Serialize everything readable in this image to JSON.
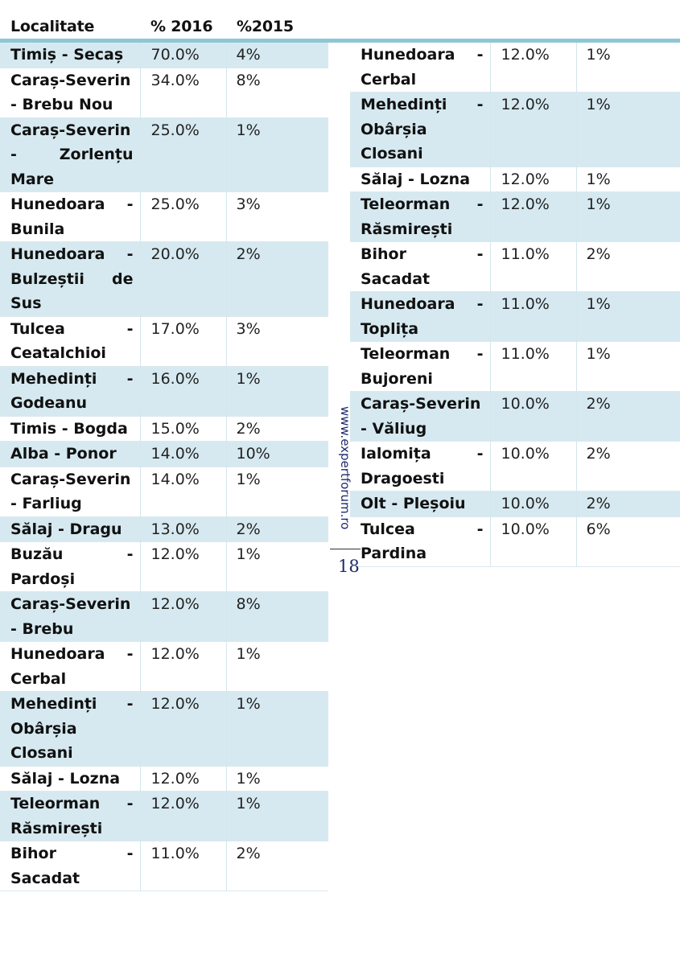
{
  "header": {
    "col_localitate": "Localitate",
    "col_2016": "% 2016",
    "col_2015": "%2015"
  },
  "left_table": [
    {
      "loc": "Timiș - Secaș",
      "p2016": "70.0%",
      "p2015": "4%",
      "shaded": true
    },
    {
      "loc": "Caraș-Severin - Brebu Nou",
      "p2016": "34.0%",
      "p2015": "8%",
      "shaded": false
    },
    {
      "loc": "Caraș-Severin - Zorlențu Mare",
      "p2016": "25.0%",
      "p2015": "1%",
      "shaded": true
    },
    {
      "loc": "Hunedoara - Bunila",
      "p2016": "25.0%",
      "p2015": "3%",
      "shaded": false
    },
    {
      "loc": "Hunedoara - Bulzeștii de Sus",
      "p2016": "20.0%",
      "p2015": "2%",
      "shaded": true
    },
    {
      "loc": "Tulcea - Ceatalchioi",
      "p2016": "17.0%",
      "p2015": "3%",
      "shaded": false
    },
    {
      "loc": "Mehedinți - Godeanu",
      "p2016": "16.0%",
      "p2015": "1%",
      "shaded": true
    },
    {
      "loc": "Timis - Bogda",
      "p2016": "15.0%",
      "p2015": "2%",
      "shaded": false
    },
    {
      "loc": "Alba - Ponor",
      "p2016": "14.0%",
      "p2015": "10%",
      "shaded": true
    },
    {
      "loc": "Caraș-Severin - Farliug",
      "p2016": "14.0%",
      "p2015": "1%",
      "shaded": false
    },
    {
      "loc": "Sălaj - Dragu",
      "p2016": "13.0%",
      "p2015": "2%",
      "shaded": true
    },
    {
      "loc": "Buzău - Pardoși",
      "p2016": "12.0%",
      "p2015": "1%",
      "shaded": false
    },
    {
      "loc": "Caraș-Severin - Brebu",
      "p2016": "12.0%",
      "p2015": "8%",
      "shaded": true
    },
    {
      "loc": "Hunedoara - Cerbal",
      "p2016": "12.0%",
      "p2015": "1%",
      "shaded": false
    },
    {
      "loc": "Mehedinți - Obârșia Closani",
      "p2016": "12.0%",
      "p2015": "1%",
      "shaded": true
    },
    {
      "loc": "Sălaj - Lozna",
      "p2016": "12.0%",
      "p2015": "1%",
      "shaded": false
    },
    {
      "loc": "Teleorman - Răsmirești",
      "p2016": "12.0%",
      "p2015": "1%",
      "shaded": true
    },
    {
      "loc": "Bihor - Sacadat",
      "p2016": "11.0%",
      "p2015": "2%",
      "shaded": false
    }
  ],
  "right_table": [
    {
      "loc": "Hunedoara - Cerbal",
      "p2016": "12.0%",
      "p2015": "1%",
      "shaded": false
    },
    {
      "loc": "Mehedinți - Obârșia Closani",
      "p2016": "12.0%",
      "p2015": "1%",
      "shaded": true
    },
    {
      "loc": "Sălaj - Lozna",
      "p2016": "12.0%",
      "p2015": "1%",
      "shaded": false
    },
    {
      "loc": "Teleorman - Răsmirești",
      "p2016": "12.0%",
      "p2015": "1%",
      "shaded": true
    },
    {
      "loc": "Bihor - Sacadat",
      "p2016": "11.0%",
      "p2015": "2%",
      "shaded": false
    },
    {
      "loc": "Hunedoara - Toplița",
      "p2016": "11.0%",
      "p2015": "1%",
      "shaded": true
    },
    {
      "loc": "Teleorman - Bujoreni",
      "p2016": "11.0%",
      "p2015": "1%",
      "shaded": false
    },
    {
      "loc": "Caraș-Severin - Văliug",
      "p2016": "10.0%",
      "p2015": "2%",
      "shaded": true
    },
    {
      "loc": "Ialomița - Dragoesti",
      "p2016": "10.0%",
      "p2015": "2%",
      "shaded": false
    },
    {
      "loc": "Olt - Pleșoiu",
      "p2016": "10.0%",
      "p2015": "2%",
      "shaded": true
    },
    {
      "loc": "Tulcea - Pardina",
      "p2016": "10.0%",
      "p2015": "6%",
      "shaded": false
    }
  ],
  "watermark": "www.expertforum.ro",
  "page_number": "18",
  "colors": {
    "header_rule": "#8ec6d6",
    "row_shade": "#d6e9f0",
    "watermark_text": "#1e2a6a"
  }
}
